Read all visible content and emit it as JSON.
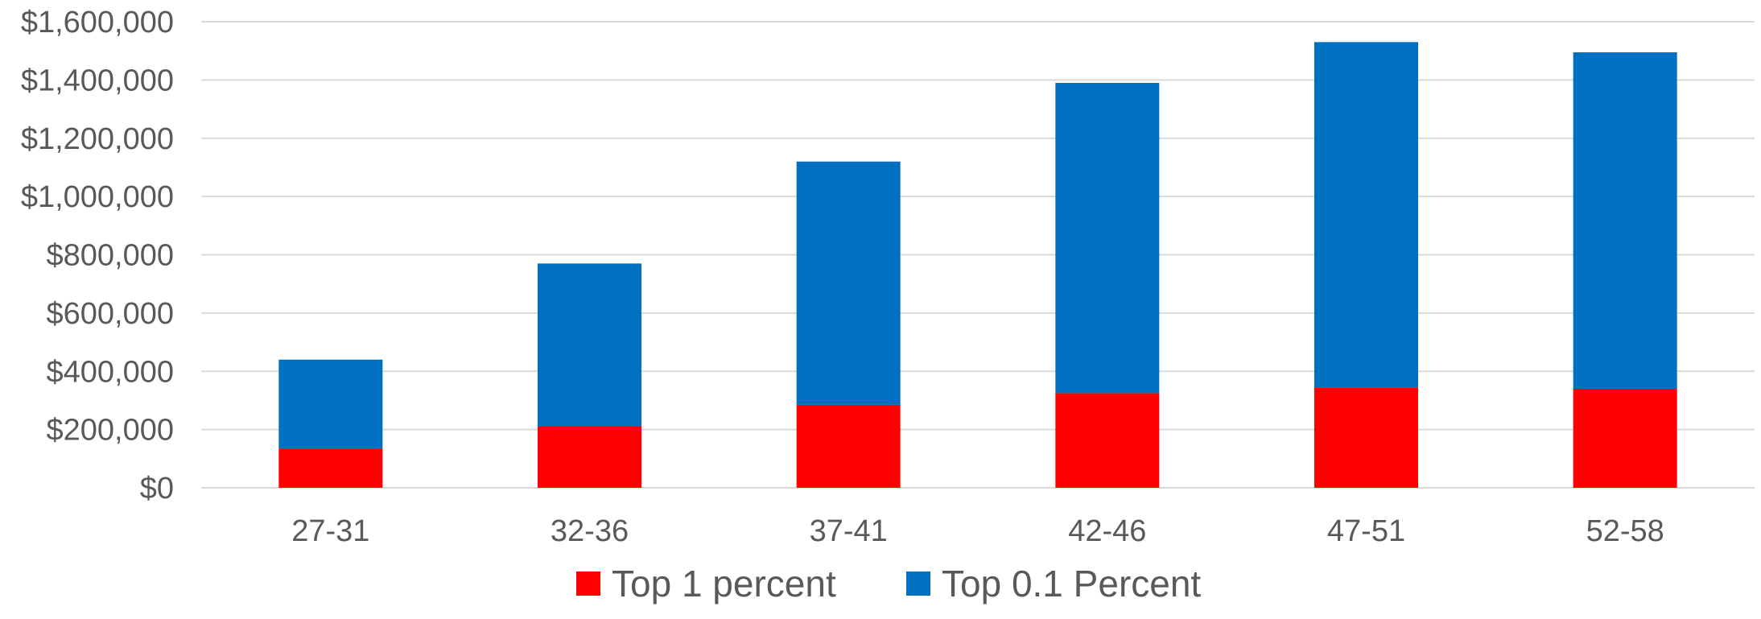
{
  "chart_data": {
    "type": "bar",
    "stacked": true,
    "title": "",
    "xlabel": "",
    "ylabel": "",
    "categories": [
      "27-31",
      "32-36",
      "37-41",
      "42-46",
      "47-51",
      "52-58"
    ],
    "series": [
      {
        "name": "Top 1 percent",
        "color": "#ff0000",
        "values": [
          135000,
          210000,
          285000,
          325000,
          345000,
          340000
        ]
      },
      {
        "name": "Top 0.1 Percent",
        "color": "#0070c0",
        "values": [
          305000,
          560000,
          835000,
          1065000,
          1185000,
          1155000
        ]
      }
    ],
    "ylim": [
      0,
      1600000
    ],
    "yticks": [
      0,
      200000,
      400000,
      600000,
      800000,
      1000000,
      1200000,
      1400000,
      1600000
    ],
    "ytick_labels": [
      "$0",
      "$200,000",
      "$400,000",
      "$600,000",
      "$800,000",
      "$1,000,000",
      "$1,200,000",
      "$1,400,000",
      "$1,600,000"
    ],
    "grid": true,
    "legend_position": "bottom"
  }
}
